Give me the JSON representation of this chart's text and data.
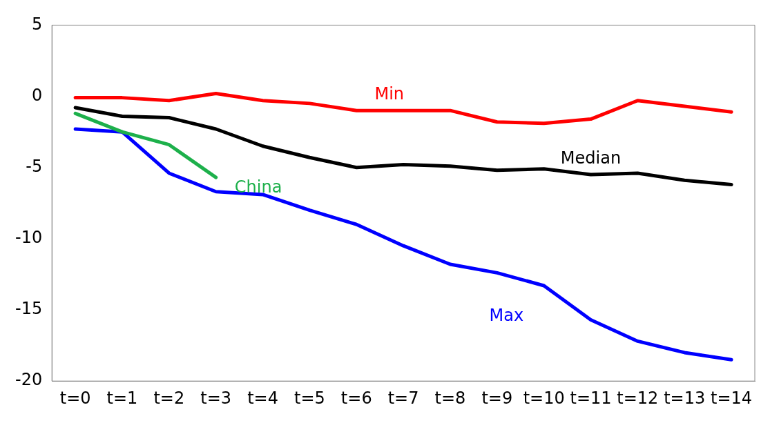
{
  "chart_data": {
    "type": "line",
    "categories": [
      "t=0",
      "t=1",
      "t=2",
      "t=3",
      "t=4",
      "t=5",
      "t=6",
      "t=7",
      "t=8",
      "t=9",
      "t=10",
      "t=11",
      "t=12",
      "t=13",
      "t=14"
    ],
    "series": [
      {
        "name": "Min",
        "color": "#ff0000",
        "values": [
          -0.1,
          -0.1,
          -0.3,
          0.2,
          -0.3,
          -0.5,
          -1.0,
          -1.0,
          -1.0,
          -1.8,
          -1.9,
          -1.6,
          -0.3,
          -0.7,
          -1.1
        ]
      },
      {
        "name": "Median",
        "color": "#000000",
        "values": [
          -0.8,
          -1.4,
          -1.5,
          -2.3,
          -3.5,
          -4.3,
          -5.0,
          -4.8,
          -4.9,
          -5.2,
          -5.1,
          -5.5,
          -5.4,
          -5.9,
          -6.2
        ]
      },
      {
        "name": "China",
        "color": "#1db04b",
        "values": [
          -1.2,
          -2.5,
          -3.4,
          -5.7,
          null,
          null,
          null,
          null,
          null,
          null,
          null,
          null,
          null,
          null,
          null
        ]
      },
      {
        "name": "Max",
        "color": "#0000ff",
        "values": [
          -2.3,
          -2.5,
          -5.4,
          -6.7,
          -6.9,
          -8.0,
          -9.0,
          -10.5,
          -11.8,
          -12.4,
          -13.3,
          -15.7,
          -17.2,
          -18.0,
          -18.5
        ]
      }
    ],
    "ylim": [
      -20,
      5
    ],
    "yticks": [
      -20,
      -15,
      -10,
      -5,
      0,
      5
    ],
    "grid": false,
    "legend": false,
    "marker": "none",
    "line_style": "solid"
  }
}
